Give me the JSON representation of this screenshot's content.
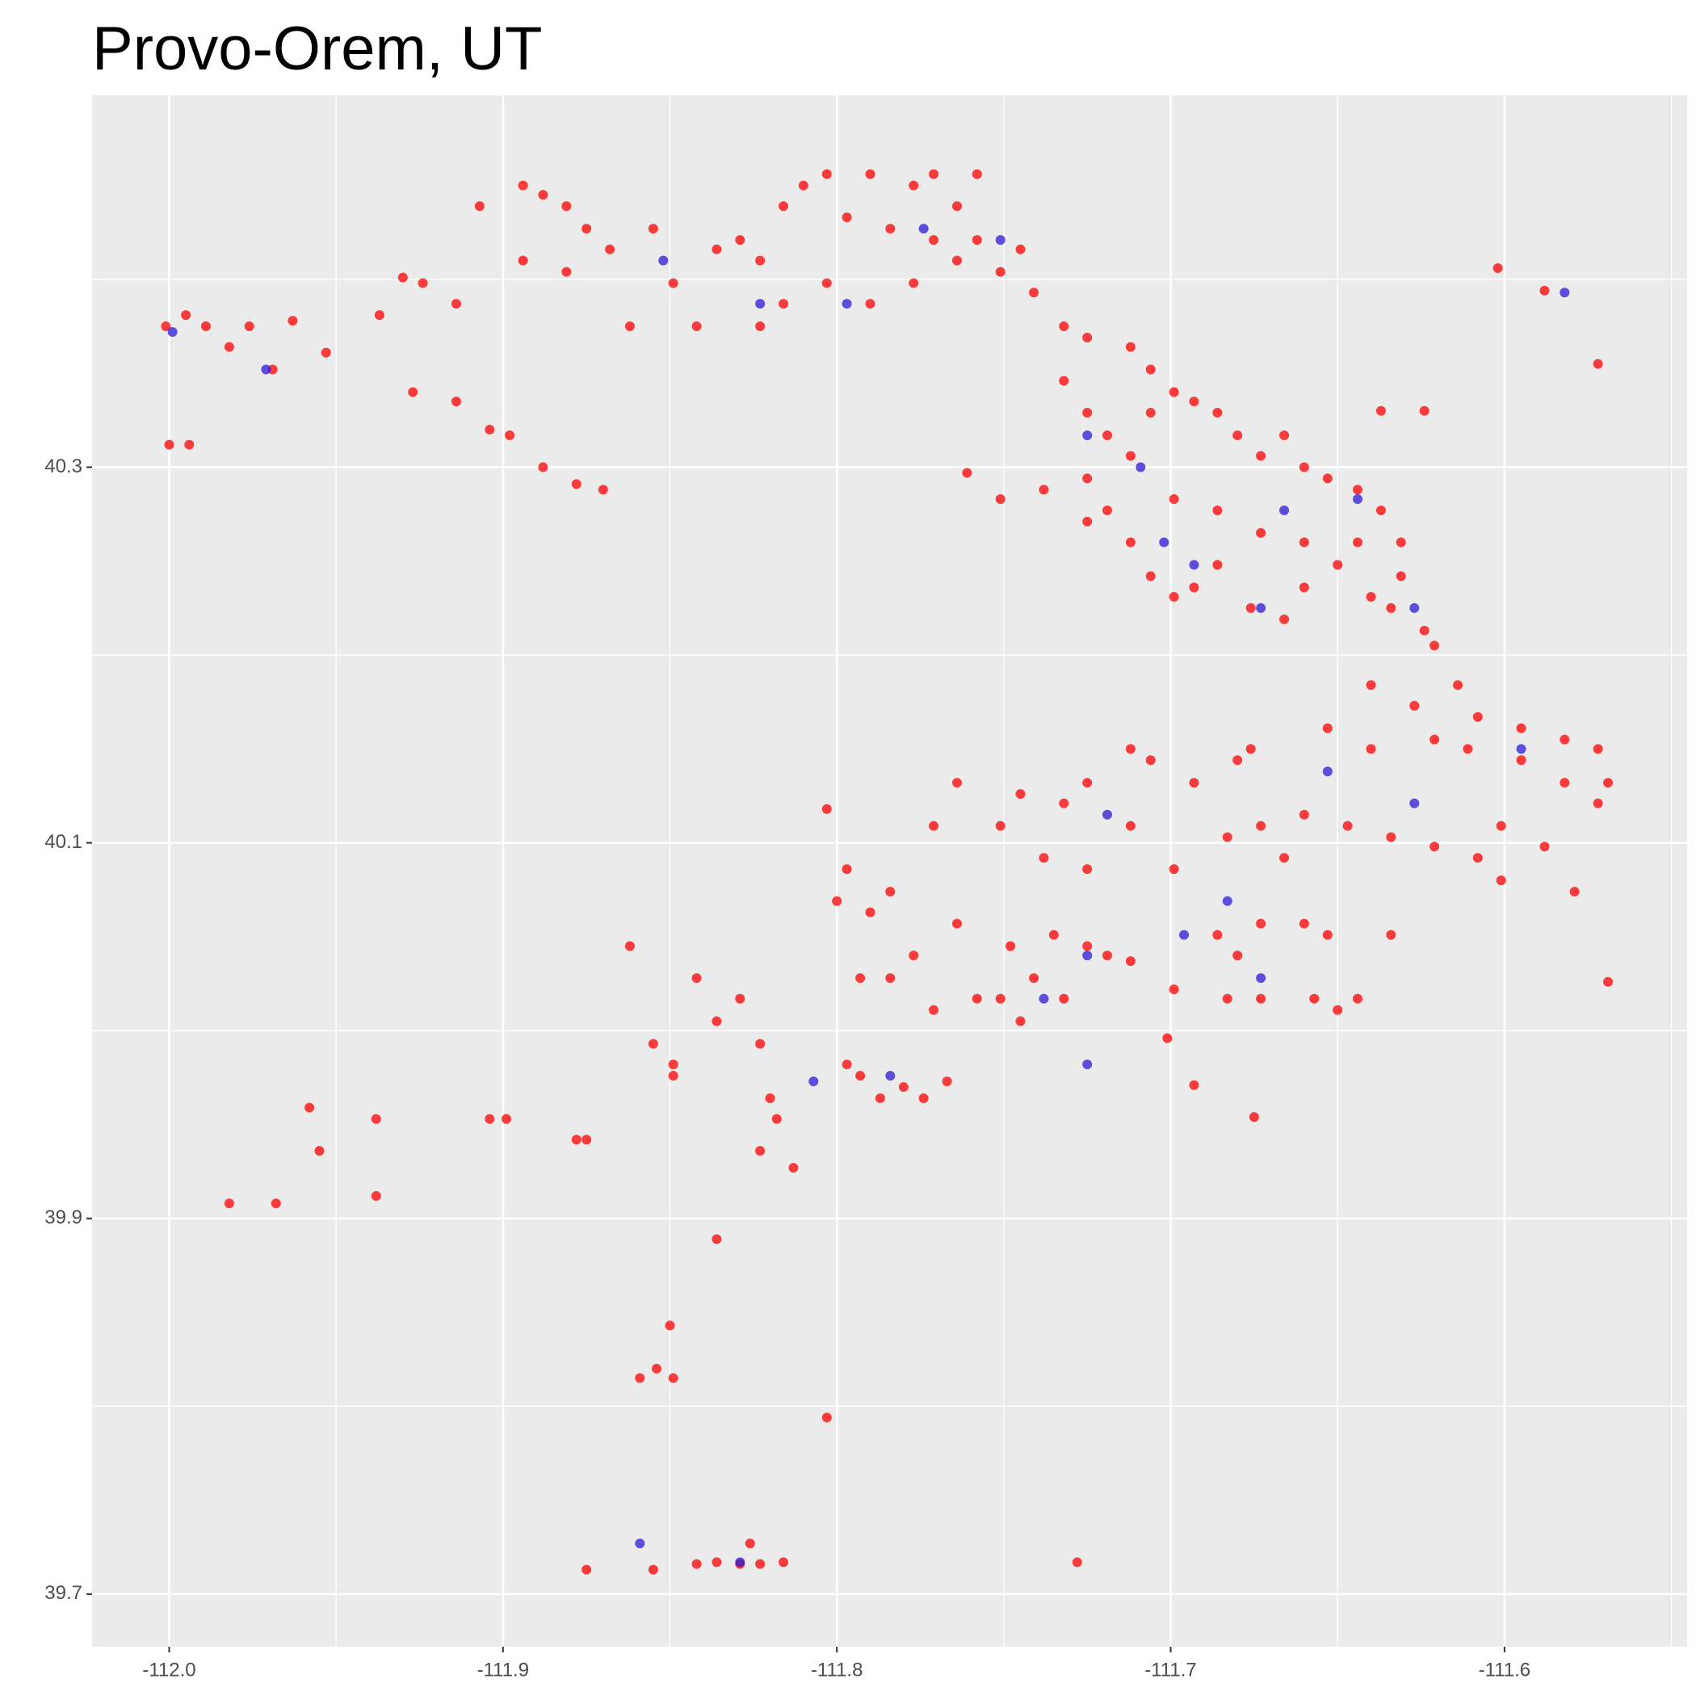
{
  "chart_data": {
    "type": "scatter",
    "title": "Provo-Orem, UT",
    "xlim": [
      -112.0231,
      -111.5453
    ],
    "ylim": [
      39.672,
      40.498
    ],
    "xticks": [
      {
        "value": -112,
        "label": "-112.0"
      },
      -111.9,
      -111.8,
      -111.7,
      -111.6
    ],
    "yticks": [
      39.7,
      39.9,
      40.1,
      40.3
    ],
    "x_minor_ticks": [
      -111.95,
      -111.85,
      -111.75,
      -111.65,
      -111.55
    ],
    "y_minor_ticks": [
      39.8,
      40.0,
      40.2,
      40.4
    ],
    "grid": true,
    "series": [
      {
        "color": "#ff0000",
        "x": [
          -112.001,
          -111.995,
          -111.989,
          -111.982,
          -111.976,
          -111.969,
          -111.963,
          -112.0,
          -111.994,
          -111.953,
          -111.937,
          -111.93,
          -111.924,
          -111.914,
          -111.927,
          -111.914,
          -111.904,
          -111.898,
          -111.888,
          -111.878,
          -111.87,
          -111.907,
          -111.894,
          -111.888,
          -111.881,
          -111.894,
          -111.881,
          -111.875,
          -111.868,
          -111.862,
          -111.855,
          -111.849,
          -111.842,
          -111.836,
          -111.829,
          -111.823,
          -111.816,
          -111.81,
          -111.803,
          -111.797,
          -111.79,
          -111.784,
          -111.777,
          -111.771,
          -111.764,
          -111.758,
          -111.803,
          -111.79,
          -111.777,
          -111.764,
          -111.751,
          -111.741,
          -111.732,
          -111.725,
          -111.712,
          -111.706,
          -111.823,
          -111.816,
          -111.771,
          -111.758,
          -111.745,
          -111.732,
          -111.725,
          -111.719,
          -111.712,
          -111.706,
          -111.699,
          -111.693,
          -111.686,
          -111.68,
          -111.673,
          -111.666,
          -111.66,
          -111.653,
          -111.644,
          -111.637,
          -111.631,
          -111.631,
          -111.634,
          -111.624,
          -111.621,
          -111.725,
          -111.719,
          -111.712,
          -111.706,
          -111.699,
          -111.693,
          -111.686,
          -111.676,
          -111.666,
          -111.66,
          -111.65,
          -111.644,
          -111.64,
          -111.699,
          -111.686,
          -111.673,
          -111.66,
          -111.751,
          -111.738,
          -111.725,
          -111.761,
          -111.602,
          -111.588,
          -111.572,
          -111.624,
          -111.637,
          -111.64,
          -111.627,
          -111.614,
          -111.608,
          -111.595,
          -111.582,
          -111.572,
          -111.569,
          -111.572,
          -111.582,
          -111.595,
          -111.601,
          -111.588,
          -111.611,
          -111.621,
          -111.64,
          -111.653,
          -111.673,
          -111.66,
          -111.647,
          -111.634,
          -111.621,
          -111.608,
          -111.601,
          -111.666,
          -111.683,
          -111.803,
          -111.797,
          -111.79,
          -111.784,
          -111.771,
          -111.764,
          -111.751,
          -111.745,
          -111.738,
          -111.732,
          -111.725,
          -111.712,
          -111.706,
          -111.693,
          -111.68,
          -111.8,
          -111.793,
          -111.777,
          -111.764,
          -111.758,
          -111.771,
          -111.784,
          -111.699,
          -111.725,
          -111.712,
          -111.676,
          -111.748,
          -111.741,
          -111.735,
          -111.725,
          -111.719,
          -111.712,
          -111.745,
          -111.751,
          -111.732,
          -111.699,
          -111.686,
          -111.673,
          -111.66,
          -111.653,
          -111.68,
          -111.683,
          -111.673,
          -111.657,
          -111.65,
          -111.644,
          -111.634,
          -111.793,
          -111.787,
          -111.78,
          -111.774,
          -111.767,
          -111.797,
          -111.855,
          -111.849,
          -111.842,
          -111.836,
          -111.829,
          -111.823,
          -111.849,
          -111.862,
          -111.82,
          -111.818,
          -111.823,
          -111.904,
          -111.899,
          -111.878,
          -111.875,
          -111.958,
          -111.955,
          -111.938,
          -111.938,
          -111.982,
          -111.968,
          -111.859,
          -111.854,
          -111.849,
          -111.85,
          -111.836,
          -111.842,
          -111.836,
          -111.829,
          -111.823,
          -111.816,
          -111.826,
          -111.875,
          -111.855,
          -111.803,
          -111.728,
          -111.569,
          -111.693,
          -111.675,
          -111.701,
          -111.813,
          -111.579
        ],
        "y": [
          40.375,
          40.381,
          40.375,
          40.364,
          40.375,
          40.352,
          40.378,
          40.312,
          40.312,
          40.361,
          40.381,
          40.401,
          40.398,
          40.387,
          40.34,
          40.335,
          40.32,
          40.317,
          40.3,
          40.291,
          40.288,
          40.439,
          40.45,
          40.445,
          40.439,
          40.41,
          40.404,
          40.427,
          40.416,
          40.375,
          40.427,
          40.398,
          40.375,
          40.416,
          40.421,
          40.41,
          40.439,
          40.45,
          40.456,
          40.433,
          40.456,
          40.427,
          40.45,
          40.456,
          40.439,
          40.456,
          40.398,
          40.387,
          40.398,
          40.41,
          40.404,
          40.393,
          40.375,
          40.369,
          40.364,
          40.352,
          40.375,
          40.387,
          40.421,
          40.421,
          40.416,
          40.346,
          40.329,
          40.317,
          40.306,
          40.329,
          40.34,
          40.335,
          40.329,
          40.317,
          40.306,
          40.317,
          40.3,
          40.294,
          40.288,
          40.277,
          40.26,
          40.242,
          40.225,
          40.213,
          40.205,
          40.294,
          40.277,
          40.26,
          40.242,
          40.231,
          40.236,
          40.248,
          40.225,
          40.219,
          40.236,
          40.248,
          40.26,
          40.231,
          40.283,
          40.277,
          40.265,
          40.26,
          40.283,
          40.288,
          40.271,
          40.297,
          40.406,
          40.394,
          40.355,
          40.33,
          40.33,
          40.184,
          40.173,
          40.184,
          40.167,
          40.161,
          40.155,
          40.15,
          40.132,
          40.121,
          40.132,
          40.144,
          40.109,
          40.098,
          40.15,
          40.155,
          40.15,
          40.161,
          40.109,
          40.115,
          40.109,
          40.103,
          40.098,
          40.092,
          40.08,
          40.092,
          40.103,
          40.118,
          40.086,
          40.063,
          40.074,
          40.109,
          40.132,
          40.109,
          40.126,
          40.092,
          40.121,
          40.132,
          40.109,
          40.144,
          40.132,
          40.144,
          40.069,
          40.028,
          40.04,
          40.057,
          40.017,
          40.011,
          40.028,
          40.086,
          40.086,
          40.15,
          40.15,
          40.045,
          40.028,
          40.051,
          40.045,
          40.04,
          40.037,
          40.005,
          40.017,
          40.017,
          40.022,
          40.051,
          40.057,
          40.057,
          40.051,
          40.04,
          40.017,
          40.017,
          40.017,
          40.011,
          40.017,
          40.051,
          39.976,
          39.964,
          39.97,
          39.964,
          39.973,
          39.982,
          39.993,
          39.976,
          40.028,
          40.005,
          40.017,
          39.993,
          39.982,
          40.045,
          39.964,
          39.953,
          39.936,
          39.953,
          39.953,
          39.942,
          39.942,
          39.959,
          39.936,
          39.953,
          39.912,
          39.908,
          39.908,
          39.815,
          39.82,
          39.815,
          39.843,
          39.889,
          39.716,
          39.717,
          39.716,
          39.716,
          39.717,
          39.727,
          39.713,
          39.713,
          39.794,
          39.717,
          40.026,
          39.971,
          39.954,
          39.996,
          39.927,
          40.074
        ]
      },
      {
        "color": "#2a1ad6",
        "x": [
          -111.999,
          -111.971,
          -111.852,
          -111.823,
          -111.797,
          -111.774,
          -111.751,
          -111.725,
          -111.709,
          -111.702,
          -111.693,
          -111.673,
          -111.666,
          -111.644,
          -111.627,
          -111.653,
          -111.627,
          -111.595,
          -111.582,
          -111.725,
          -111.738,
          -111.683,
          -111.784,
          -111.696,
          -111.829,
          -111.859,
          -111.807,
          -111.725,
          -111.673,
          -111.719
        ],
        "y": [
          40.372,
          40.352,
          40.41,
          40.387,
          40.387,
          40.427,
          40.421,
          40.317,
          40.3,
          40.26,
          40.248,
          40.225,
          40.277,
          40.283,
          40.225,
          40.138,
          40.121,
          40.15,
          40.393,
          40.04,
          40.017,
          40.069,
          39.976,
          40.051,
          39.717,
          39.727,
          39.973,
          39.982,
          40.028,
          40.115
        ]
      }
    ]
  }
}
